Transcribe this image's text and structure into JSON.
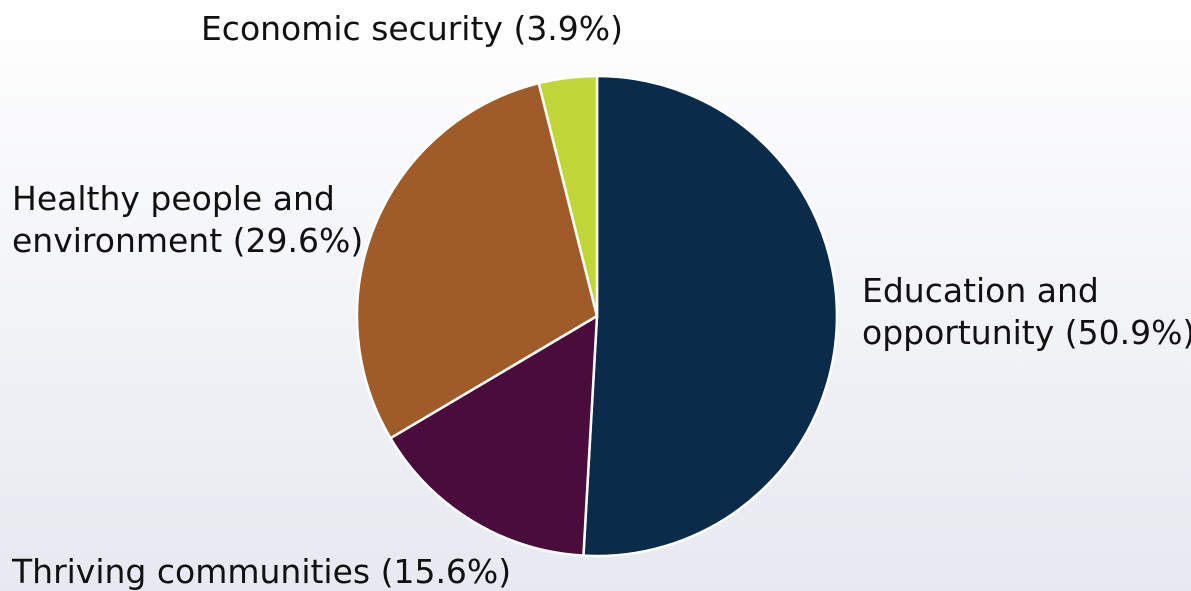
{
  "chart_data": {
    "type": "pie",
    "start_angle_deg": 0,
    "direction": "clockwise",
    "legend": "none",
    "slices": [
      {
        "label": "Education and opportunity",
        "value": 50.9,
        "display": [
          "Education and",
          "opportunity (50.9%)"
        ],
        "color": "#0b2b4b"
      },
      {
        "label": "Thriving communities",
        "value": 15.6,
        "display": [
          "Thriving communities (15.6%)"
        ],
        "color": "#4a0c3a"
      },
      {
        "label": "Healthy people and environment",
        "value": 29.6,
        "display": [
          "Healthy people and",
          "environment (29.6%)"
        ],
        "color": "#a05c28"
      },
      {
        "label": "Economic security",
        "value": 3.9,
        "display": [
          "Economic security (3.9%)"
        ],
        "color": "#c0d739"
      }
    ]
  }
}
